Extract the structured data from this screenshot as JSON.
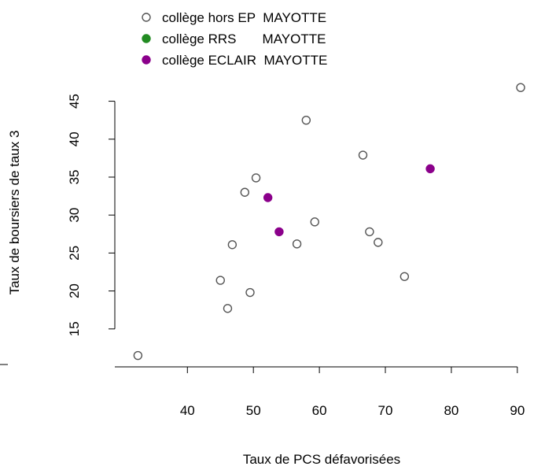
{
  "chart_data": {
    "type": "scatter",
    "xlabel": "Taux de PCS défavorisées",
    "ylabel": "Taux de boursiers de taux 3",
    "xlim": [
      29,
      93
    ],
    "ylim": [
      10,
      49
    ],
    "x_ticks": [
      40,
      50,
      60,
      70,
      80,
      90
    ],
    "y_ticks": [
      15,
      20,
      25,
      30,
      35,
      40,
      45
    ],
    "legend_position": "top",
    "series": [
      {
        "name": "collège hors EP  MAYOTTE",
        "color": "#555555",
        "marker": "open-circle",
        "points": [
          {
            "x": 32.5,
            "y": 11.5
          },
          {
            "x": 45.0,
            "y": 21.4
          },
          {
            "x": 46.1,
            "y": 17.7
          },
          {
            "x": 46.8,
            "y": 26.1
          },
          {
            "x": 48.7,
            "y": 33.0
          },
          {
            "x": 49.5,
            "y": 19.8
          },
          {
            "x": 50.4,
            "y": 34.9
          },
          {
            "x": 56.6,
            "y": 26.2
          },
          {
            "x": 58.0,
            "y": 42.5
          },
          {
            "x": 59.3,
            "y": 29.1
          },
          {
            "x": 66.6,
            "y": 37.9
          },
          {
            "x": 67.6,
            "y": 27.8
          },
          {
            "x": 68.9,
            "y": 26.4
          },
          {
            "x": 72.9,
            "y": 21.9
          },
          {
            "x": 90.5,
            "y": 46.8
          }
        ]
      },
      {
        "name": "collège RRS       MAYOTTE",
        "color": "#228b22",
        "marker": "filled-circle",
        "points": []
      },
      {
        "name": "collège ECLAIR  MAYOTTE",
        "color": "#8b008b",
        "marker": "filled-circle",
        "points": [
          {
            "x": 52.2,
            "y": 32.3
          },
          {
            "x": 53.9,
            "y": 27.8
          },
          {
            "x": 76.8,
            "y": 36.1
          }
        ]
      }
    ]
  }
}
